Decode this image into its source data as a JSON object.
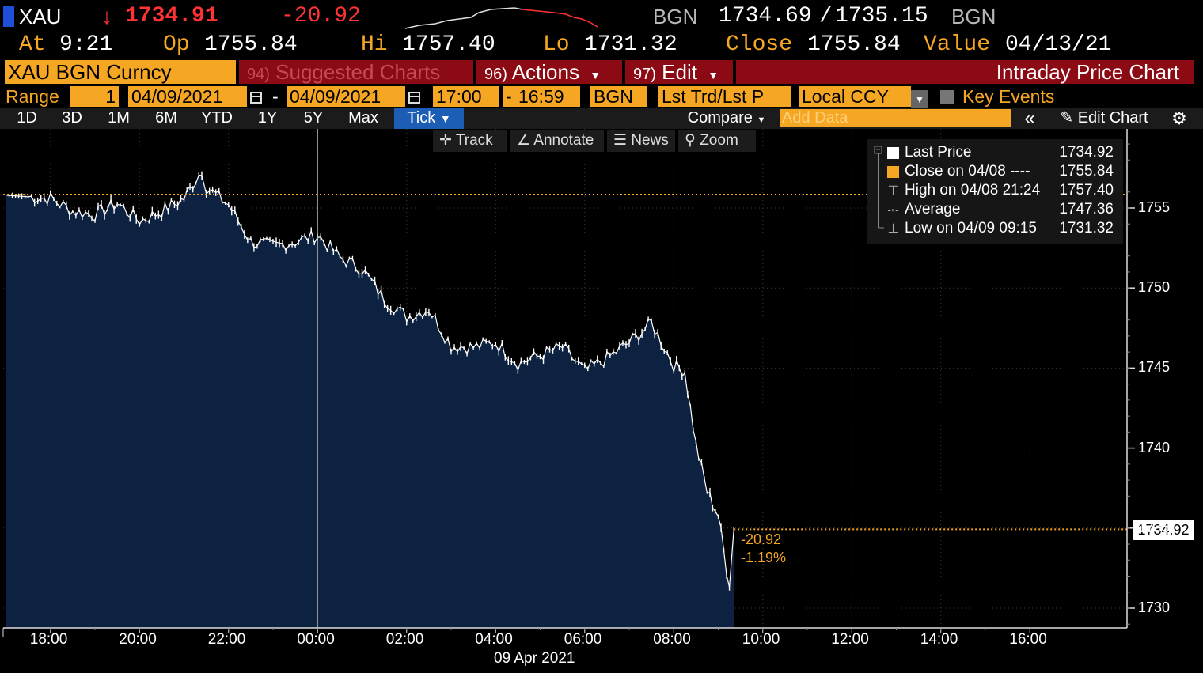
{
  "header": {
    "ticker": "XAU",
    "arrow": "↓",
    "last": "1734.91",
    "change": "-20.92",
    "source1": "BGN",
    "bid": "1734.69",
    "slash": "/",
    "ask": "1735.15",
    "source2": "BGN",
    "at_label": "At",
    "time": "9:21",
    "op_label": "Op",
    "open": "1755.84",
    "hi_label": "Hi",
    "high": "1757.40",
    "lo_label": "Lo",
    "low": "1731.32",
    "close_label": "Close",
    "close": "1755.84",
    "value_label": "Value",
    "value_date": "04/13/21"
  },
  "titlebar": {
    "security": "XAU BGN Curncy",
    "suggested_num": "94)",
    "suggested": "Suggested Charts",
    "actions_num": "96)",
    "actions": "Actions",
    "edit_num": "97)",
    "edit": "Edit",
    "chart_title": "Intraday Price Chart"
  },
  "range": {
    "label": "Range",
    "count": "1",
    "start_date": "04/09/2021",
    "dash1": "-",
    "end_date": "04/09/2021",
    "start_time": "17:00",
    "dash2": "-",
    "end_time": "16:59",
    "source": "BGN",
    "field": "Lst Trd/Lst P",
    "currency": "Local CCY",
    "key_events": "Key Events"
  },
  "toolbar": {
    "periods": [
      "1D",
      "3D",
      "1M",
      "6M",
      "YTD",
      "1Y",
      "5Y",
      "Max"
    ],
    "tick": "Tick",
    "compare": "Compare",
    "add_data_placeholder": "Add Data",
    "edit_chart": "Edit Chart"
  },
  "chart_toolbar": {
    "track": "Track",
    "annotate": "Annotate",
    "news": "News",
    "zoom": "Zoom"
  },
  "legend": {
    "items": [
      {
        "label": "Last Price",
        "value": "1734.92"
      },
      {
        "label": "Close on 04/08 ----",
        "value": "1755.84"
      },
      {
        "label": "High on 04/08 21:24",
        "value": "1757.40"
      },
      {
        "label": "Average",
        "value": "1747.36"
      },
      {
        "label": "Low on 04/09 09:15",
        "value": "1731.32"
      }
    ]
  },
  "colors": {
    "amber": "#f5a623",
    "red": "#ff3333",
    "area_fill": "#0d2240",
    "menu_red": "#8b0a14",
    "tick_blue": "#1c5eb5"
  },
  "chart_data": {
    "type": "area",
    "title": "Intraday Price Chart",
    "x_ticks": [
      "18:00",
      "20:00",
      "22:00",
      "00:00",
      "02:00",
      "04:00",
      "06:00",
      "08:00",
      "10:00",
      "12:00",
      "14:00",
      "16:00"
    ],
    "x_date_label": "09 Apr 2021",
    "y_ticks": [
      1730,
      1735,
      1740,
      1745,
      1750,
      1755
    ],
    "ylim": [
      1729,
      1760
    ],
    "reference_line": {
      "name": "Close on 04/08",
      "value": 1755.84
    },
    "last_line": {
      "name": "Last Price",
      "value": 1734.92
    },
    "last_tag": "1734.92",
    "change_abs": "-20.92",
    "change_pct": "-1.19%",
    "series": [
      {
        "name": "Last Price",
        "x": [
          "17:00",
          "17:30",
          "18:00",
          "18:30",
          "19:00",
          "19:30",
          "20:00",
          "20:30",
          "21:00",
          "21:24",
          "21:30",
          "22:00",
          "22:30",
          "23:00",
          "23:30",
          "00:00",
          "00:30",
          "01:00",
          "01:30",
          "02:00",
          "02:30",
          "03:00",
          "03:30",
          "04:00",
          "04:30",
          "05:00",
          "05:30",
          "06:00",
          "06:30",
          "07:00",
          "07:30",
          "08:00",
          "08:15",
          "08:30",
          "08:45",
          "09:00",
          "09:15",
          "09:21"
        ],
        "values": [
          1755.8,
          1755.7,
          1755.6,
          1754.8,
          1754.6,
          1755.3,
          1754.2,
          1754.8,
          1755.6,
          1757.4,
          1756.3,
          1755.2,
          1752.9,
          1752.6,
          1752.9,
          1753.3,
          1751.9,
          1751.2,
          1749.3,
          1748.2,
          1748.7,
          1746.4,
          1746.3,
          1746.6,
          1745.3,
          1745.8,
          1746.3,
          1744.8,
          1745.6,
          1746.6,
          1747.8,
          1745.2,
          1744.8,
          1740.2,
          1737.3,
          1735.8,
          1731.32,
          1734.92
        ]
      }
    ]
  }
}
